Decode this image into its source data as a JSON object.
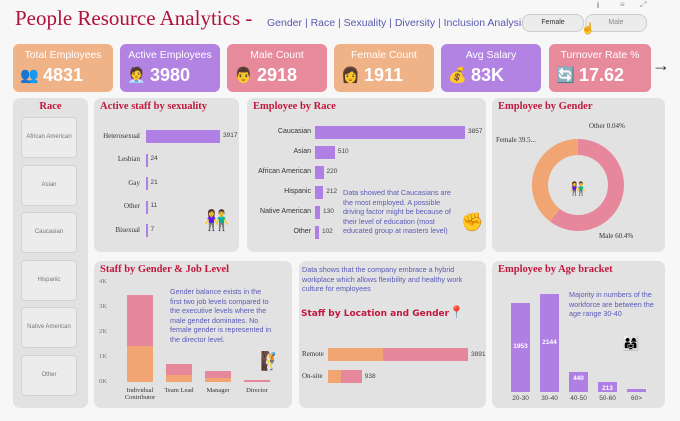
{
  "header": {
    "title": "People Resource Analytics -",
    "subtitle": "Gender | Race | Sexuality | Diversity | Inclusion Analysis",
    "toggle_female": "Female",
    "toggle_male": "Male"
  },
  "kpis": [
    {
      "label": "Total Employees",
      "value": "4831",
      "icon": "people-group-icon",
      "color": "#f0b287"
    },
    {
      "label": "Active Employees",
      "value": "3980",
      "icon": "active-staff-icon",
      "color": "#b283e3"
    },
    {
      "label": "Male Count",
      "value": "2918",
      "icon": "male-person-icon",
      "color": "#e78a9c"
    },
    {
      "label": "Female Count",
      "value": "1911",
      "icon": "female-person-icon",
      "color": "#f0b287"
    },
    {
      "label": "Avg Salary",
      "value": "83K",
      "icon": "money-bag-icon",
      "color": "#b283e3"
    },
    {
      "label": "Turnover Rate %",
      "value": "17.62",
      "icon": "turnover-icon",
      "color": "#e78a9c"
    }
  ],
  "slicer": {
    "title": "Race",
    "items": [
      "African American",
      "Asian",
      "Caucasian",
      "Hispanic",
      "Native American",
      "Other"
    ]
  },
  "colors": {
    "female": "#f0a572",
    "male": "#e7879c",
    "purple": "#b07fe3"
  },
  "charts": {
    "sexuality": {
      "title": "Active staff by sexuality",
      "type": "bar",
      "categories": [
        "Heterosexual",
        "Lesbian",
        "Gay",
        "Other",
        "Bisexual"
      ],
      "values": [
        3917,
        24,
        21,
        11,
        7
      ]
    },
    "race": {
      "title": "Employee by Race",
      "type": "bar",
      "categories": [
        "Caucasian",
        "Asian",
        "African American",
        "Hispanic",
        "Native American",
        "Other"
      ],
      "values": [
        3857,
        510,
        220,
        212,
        130,
        102
      ],
      "note": "Data showed that Caucasians are the most employed. A possible driving factor might be because of their level of education (most educated group at masters level)"
    },
    "gender": {
      "title": "Employee by Gender",
      "type": "pie",
      "slices": [
        {
          "name": "Male",
          "pct": 60.4,
          "label": "Male 60.4%"
        },
        {
          "name": "Female",
          "pct": 39.5,
          "label": "Female 39.5..."
        },
        {
          "name": "Other",
          "pct": 0.04,
          "label": "Other 0.04%"
        }
      ]
    },
    "job": {
      "title": "Staff by Gender & Job Level",
      "type": "bar",
      "categories": [
        "Individual Contributor",
        "Team Lead",
        "Manager",
        "Director"
      ],
      "series": [
        {
          "name": "Female",
          "values": [
            1450,
            300,
            150,
            0
          ]
        },
        {
          "name": "Male",
          "values": [
            2050,
            430,
            300,
            100
          ]
        }
      ],
      "yticks": [
        "0K",
        "1K",
        "2K",
        "3K",
        "4K"
      ],
      "ylim": [
        0,
        4000
      ],
      "note": "Gender balance exists in the first two job levels compared to the executive levels where the male gender dominates. No female gender is represented in the director level."
    },
    "location": {
      "title": "Staff by Location and Gender",
      "type": "bar",
      "categories": [
        "Remote",
        "On-site"
      ],
      "totals": [
        3891,
        938
      ],
      "series": [
        {
          "name": "Female",
          "values": [
            1540,
            370
          ]
        },
        {
          "name": "Male",
          "values": [
            2351,
            568
          ]
        }
      ],
      "note": "Data shows that the company embrace a hybrid workplace which allows flexibility and healthy work culture for employees"
    },
    "age": {
      "title": "Employee by Age bracket",
      "type": "bar",
      "categories": [
        "20-30",
        "30-40",
        "40-50",
        "50-60",
        "60>"
      ],
      "values": [
        1953,
        2144,
        440,
        213,
        70
      ],
      "labels": [
        "1953",
        "2144",
        "440",
        "213",
        ""
      ],
      "note": "Majority in numbers of the workforce are between the age range 30-40"
    }
  }
}
